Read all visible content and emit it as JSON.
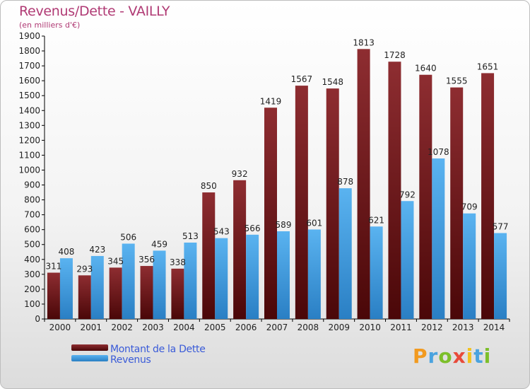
{
  "header": {
    "title": "Revenus/Dette - VAILLY",
    "subtitle": "(en milliers d'€)"
  },
  "chart_data": {
    "type": "bar",
    "title": "Revenus/Dette - VAILLY",
    "ylabel": "(en milliers d'€)",
    "xlabel": "",
    "ylim": [
      0,
      1900
    ],
    "ytick_step": 100,
    "grid": false,
    "legend_position": "bottom-left",
    "categories": [
      "2000",
      "2001",
      "2002",
      "2003",
      "2004",
      "2005",
      "2006",
      "2007",
      "2008",
      "2009",
      "2010",
      "2011",
      "2012",
      "2013",
      "2014"
    ],
    "series": [
      {
        "name": "Montant de la Dette",
        "color": "#7a1f24",
        "values": [
          311,
          293,
          345,
          356,
          338,
          850,
          932,
          1419,
          1567,
          1548,
          1813,
          1728,
          1640,
          1555,
          1651
        ]
      },
      {
        "name": "Revenus",
        "color": "#3fa0e6",
        "values": [
          408,
          423,
          506,
          459,
          513,
          543,
          566,
          589,
          601,
          878,
          621,
          792,
          1078,
          709,
          577
        ]
      }
    ]
  },
  "legend": {
    "items": [
      {
        "label": "Montant de la Dette",
        "color": "#6b1518"
      },
      {
        "label": "Revenus",
        "color": "#3fa0e6"
      }
    ]
  },
  "logo": {
    "letters": [
      "P",
      "r",
      "o",
      "x",
      "i",
      "t",
      "i"
    ],
    "colors": [
      "#f29a1f",
      "#4aa3df",
      "#7cbf2a",
      "#e84a3a",
      "#f2c21f",
      "#4aa3df",
      "#7cbf2a"
    ]
  }
}
